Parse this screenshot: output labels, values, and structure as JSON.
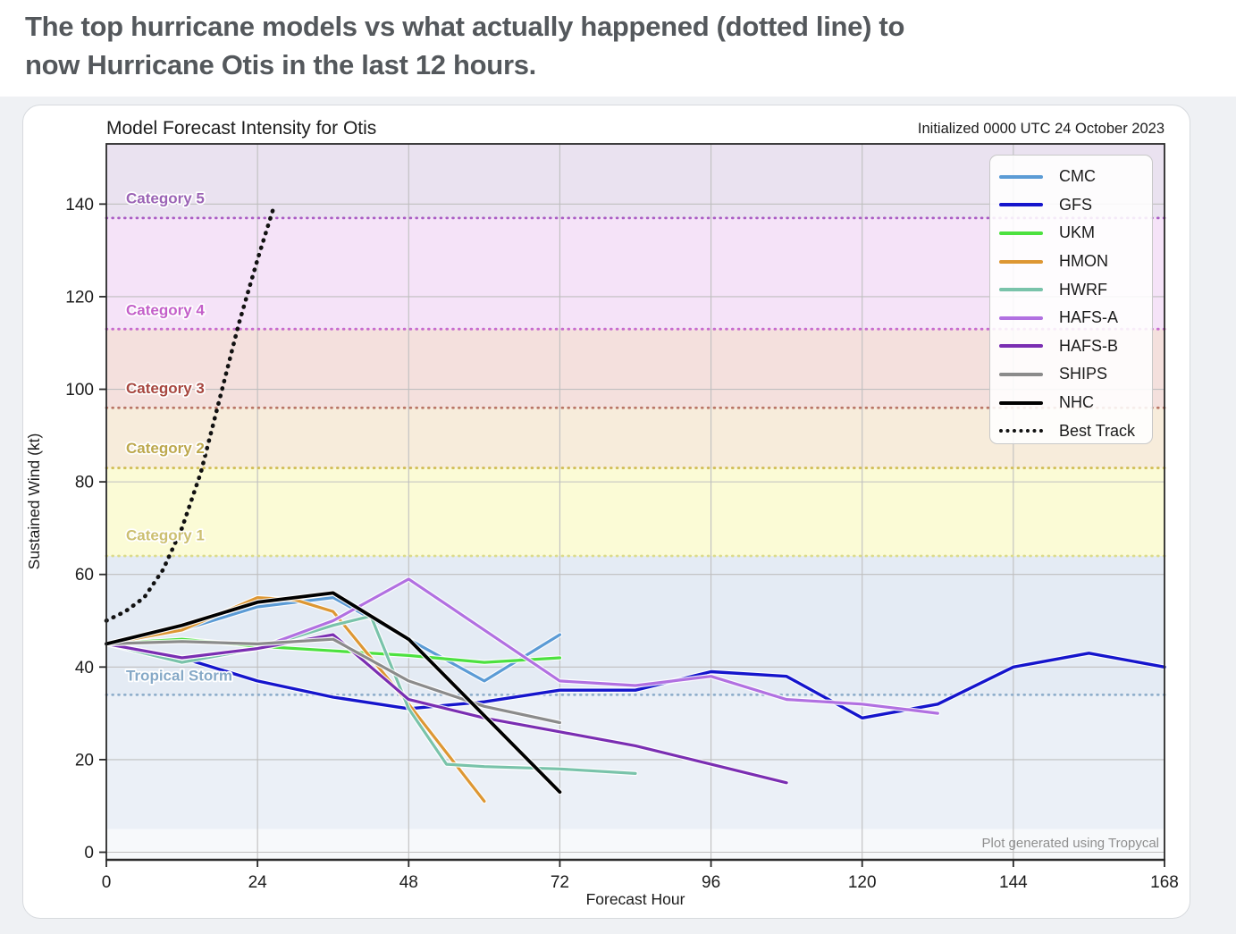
{
  "page": {
    "headline_line1": "The top hurricane models vs what actually happened (dotted line) to",
    "headline_line2": "now Hurricane Otis in the last 12 hours."
  },
  "chart_data": {
    "type": "line",
    "title": "Model Forecast Intensity for Otis",
    "initialized_label": "Initialized 0000 UTC 24 October 2023",
    "credit": "Plot generated using Tropycal",
    "xlabel": "Forecast Hour",
    "ylabel": "Sustained Wind (kt)",
    "xlim": [
      0,
      168
    ],
    "ylim": [
      -1.64,
      153.0
    ],
    "grid": true,
    "legend_position": "upper right",
    "xticks": [
      0,
      24,
      48,
      72,
      96,
      120,
      144,
      168
    ],
    "yticks": [
      0,
      20,
      40,
      60,
      80,
      100,
      120,
      140
    ],
    "bands": [
      {
        "label": "Category 5",
        "min": 137,
        "max": 153,
        "fill": "#EAE2F0",
        "dotted": "#AA5EC4",
        "label_color": "#9B63B5",
        "label_kt": 141.3
      },
      {
        "label": "Category 4",
        "min": 113,
        "max": 137,
        "fill": "#F5E3F8",
        "dotted": "#C76CCE",
        "label_color": "#C35FC9",
        "label_kt": 117.2
      },
      {
        "label": "Category 3",
        "min": 96,
        "max": 113,
        "fill": "#F4E0DD",
        "dotted": "#B97566",
        "label_color": "#A7473F",
        "label_kt": 100.3
      },
      {
        "label": "Category 2",
        "min": 83,
        "max": 96,
        "fill": "#F7ECDB",
        "dotted": "#D2BE58",
        "label_color": "#BDA84D",
        "label_kt": 87.4
      },
      {
        "label": "Category 1",
        "min": 64,
        "max": 83,
        "fill": "#FBFBD6",
        "dotted": "#DBDB8C",
        "label_color": "#CCBF70",
        "label_kt": 68.5
      },
      {
        "label": "Tropical Storm",
        "min": 34,
        "max": 64,
        "fill": "#E4EBF4",
        "dotted": "#8FAECB",
        "label_color": "#86A9C7",
        "label_kt": 38.2
      },
      {
        "label": "",
        "min": 5,
        "max": 34,
        "fill": "#EBF0F7"
      },
      {
        "label": "",
        "min": -1.64,
        "max": 5,
        "fill": "#F7F9FB"
      }
    ],
    "series": [
      {
        "name": "CMC",
        "color": "#5B9BD5",
        "width": 3.2,
        "points": [
          [
            0,
            45
          ],
          [
            12,
            48
          ],
          [
            24,
            53
          ],
          [
            36,
            55
          ],
          [
            48,
            46
          ],
          [
            60,
            37
          ],
          [
            72,
            47
          ]
        ]
      },
      {
        "name": "GFS",
        "color": "#1515CC",
        "width": 3.4,
        "points": [
          [
            0,
            45
          ],
          [
            12,
            42
          ],
          [
            24,
            37
          ],
          [
            36,
            33.5
          ],
          [
            48,
            31
          ],
          [
            60,
            32.5
          ],
          [
            72,
            35
          ],
          [
            84,
            35
          ],
          [
            96,
            39
          ],
          [
            108,
            38
          ],
          [
            120,
            29
          ],
          [
            132,
            32
          ],
          [
            144,
            40
          ],
          [
            156,
            43
          ],
          [
            168,
            40
          ]
        ]
      },
      {
        "name": "UKM",
        "color": "#4CE13F",
        "width": 3.2,
        "points": [
          [
            0,
            45
          ],
          [
            12,
            46
          ],
          [
            24,
            44.5
          ],
          [
            36,
            43.5
          ],
          [
            48,
            42.5
          ],
          [
            60,
            41
          ],
          [
            72,
            42
          ]
        ]
      },
      {
        "name": "HMON",
        "color": "#DD9733",
        "width": 3.2,
        "points": [
          [
            0,
            45
          ],
          [
            12,
            48
          ],
          [
            24,
            55
          ],
          [
            30,
            54.5
          ],
          [
            36,
            52
          ],
          [
            48,
            32
          ],
          [
            60,
            11
          ]
        ]
      },
      {
        "name": "HWRF",
        "color": "#79C3AA",
        "width": 3.2,
        "points": [
          [
            0,
            45
          ],
          [
            12,
            41
          ],
          [
            24,
            44
          ],
          [
            36,
            49
          ],
          [
            42,
            51
          ],
          [
            48,
            31
          ],
          [
            54,
            19
          ],
          [
            60,
            18.5
          ],
          [
            72,
            18
          ],
          [
            84,
            17
          ]
        ]
      },
      {
        "name": "HAFS-A",
        "color": "#B170E1",
        "width": 3.2,
        "points": [
          [
            0,
            45
          ],
          [
            12,
            42
          ],
          [
            24,
            44
          ],
          [
            36,
            50
          ],
          [
            48,
            59
          ],
          [
            60,
            48
          ],
          [
            72,
            37
          ],
          [
            84,
            36
          ],
          [
            96,
            38
          ],
          [
            108,
            33
          ],
          [
            120,
            32
          ],
          [
            132,
            30
          ]
        ]
      },
      {
        "name": "HAFS-B",
        "color": "#7A2EB2",
        "width": 3.2,
        "points": [
          [
            0,
            45
          ],
          [
            12,
            42
          ],
          [
            24,
            44
          ],
          [
            36,
            47
          ],
          [
            48,
            33
          ],
          [
            60,
            29
          ],
          [
            72,
            26
          ],
          [
            84,
            23
          ],
          [
            96,
            19
          ],
          [
            108,
            15
          ]
        ]
      },
      {
        "name": "SHIPS",
        "color": "#8B8B8B",
        "width": 3.2,
        "points": [
          [
            0,
            45
          ],
          [
            12,
            45.5
          ],
          [
            24,
            45
          ],
          [
            36,
            46
          ],
          [
            48,
            37
          ],
          [
            60,
            31.5
          ],
          [
            72,
            28
          ]
        ]
      },
      {
        "name": "NHC",
        "color": "#000000",
        "width": 3.8,
        "points": [
          [
            0,
            45
          ],
          [
            12,
            49
          ],
          [
            24,
            54
          ],
          [
            36,
            56
          ],
          [
            48,
            46
          ],
          [
            60,
            29.5
          ],
          [
            72,
            13
          ]
        ]
      },
      {
        "name": "Best Track",
        "color": "#111111",
        "width": 4.6,
        "style": "dotted",
        "points": [
          [
            0,
            50
          ],
          [
            3,
            52
          ],
          [
            6,
            55
          ],
          [
            9,
            61
          ],
          [
            12,
            70
          ],
          [
            15,
            82
          ],
          [
            18,
            98
          ],
          [
            21,
            114
          ],
          [
            24,
            128
          ],
          [
            26.5,
            139
          ]
        ]
      }
    ]
  }
}
